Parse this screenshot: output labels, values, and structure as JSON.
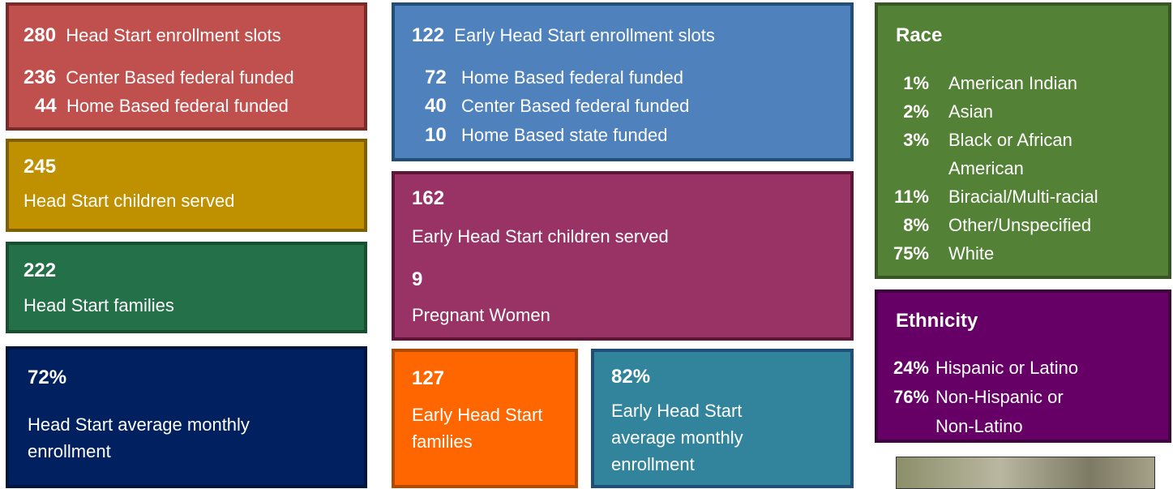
{
  "boxes": {
    "hs_slots": {
      "total": {
        "number": "280",
        "label": "Head Start enrollment slots"
      },
      "items": [
        {
          "number": "236",
          "label": "Center Based federal funded"
        },
        {
          "number": "44",
          "label": "Home Based federal funded"
        }
      ]
    },
    "hs_served": {
      "number": "245",
      "label": "Head Start children served"
    },
    "hs_families": {
      "number": "222",
      "label": "Head Start families"
    },
    "hs_enrollment": {
      "number": "72%",
      "label": "Head Start average monthly enrollment"
    },
    "ehs_slots": {
      "total": {
        "number": "122",
        "label": "Early Head Start enrollment slots"
      },
      "items": [
        {
          "number": "72",
          "label": "Home Based federal funded"
        },
        {
          "number": "40",
          "label": "Center Based federal funded"
        },
        {
          "number": "10",
          "label": "Home Based state funded"
        }
      ]
    },
    "ehs_served": {
      "number": "162",
      "label": "Early Head Start children served",
      "pregnant_number": "9",
      "pregnant_label": "Pregnant Women"
    },
    "ehs_families": {
      "number": "127",
      "label": "Early Head Start families"
    },
    "ehs_enrollment": {
      "number": "82%",
      "label": "Early Head Start average monthly enrollment"
    },
    "race": {
      "title": "Race",
      "items": [
        {
          "number": "1%",
          "label": "American Indian"
        },
        {
          "number": "2%",
          "label": "Asian"
        },
        {
          "number": "3%",
          "label": "Black or African American"
        },
        {
          "number": "11%",
          "label": "Biracial/Multi-racial"
        },
        {
          "number": "8%",
          "label": "Other/Unspecified"
        },
        {
          "number": "75%",
          "label": "White"
        }
      ]
    },
    "ethnicity": {
      "title": "Ethnicity",
      "items": [
        {
          "number": "24%",
          "label": "Hispanic or Latino"
        },
        {
          "number": "76%",
          "label": "Non-Hispanic or Non-Latino"
        }
      ]
    }
  }
}
